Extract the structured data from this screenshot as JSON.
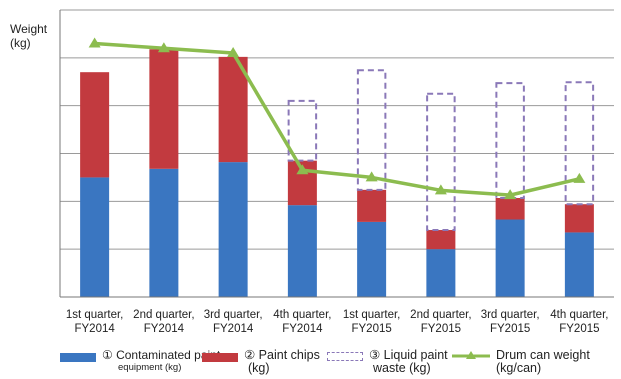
{
  "chart_data": {
    "type": "bar",
    "subtype": "stacked-bar-with-line",
    "ylabel_line1": "Weight",
    "ylabel_line2": "(kg)",
    "categories": [
      [
        "1st quarter,",
        "FY2014"
      ],
      [
        "2nd quarter,",
        "FY2014"
      ],
      [
        "3rd quarter,",
        "FY2014"
      ],
      [
        "4th quarter,",
        "FY2014"
      ],
      [
        "1st quarter,",
        "FY2015"
      ],
      [
        "2nd quarter,",
        "FY2015"
      ],
      [
        "3rd quarter,",
        "FY2015"
      ],
      [
        "4th quarter,",
        "FY2015"
      ]
    ],
    "ylim": [
      0,
      6
    ],
    "gridlines": [
      1,
      2,
      3,
      4,
      5,
      6
    ],
    "grid": true,
    "y_tick_labels_shown": false,
    "series": [
      {
        "name": "① Contaminated paint equipment (kg)",
        "kind": "bar",
        "color": "#3a76c1",
        "values": [
          2.5,
          2.68,
          2.82,
          1.92,
          1.57,
          1.0,
          1.62,
          1.35
        ]
      },
      {
        "name": "② Paint chips (kg)",
        "kind": "bar",
        "color": "#c23a3f",
        "values": [
          2.2,
          2.5,
          2.2,
          0.93,
          0.67,
          0.4,
          0.45,
          0.59
        ]
      },
      {
        "name": "③ Liquid paint waste (kg)",
        "kind": "bar-outline",
        "color": "#8a78b8",
        "values": [
          0,
          0,
          0,
          1.25,
          2.5,
          2.85,
          2.4,
          2.55
        ]
      },
      {
        "name": "Drum can weight (kg/can)",
        "kind": "line",
        "color": "#8cbc4f",
        "values": [
          5.3,
          5.2,
          5.1,
          2.65,
          2.5,
          2.23,
          2.13,
          2.47
        ]
      }
    ],
    "legend_position": "bottom"
  },
  "legend": {
    "item1_line1": "① Contaminated paint",
    "item1_line2": "equipment (kg)",
    "item2_line1": "② Paint chips",
    "item2_line2": "(kg)",
    "item3_line1": "③ Liquid paint",
    "item3_line2": "waste (kg)",
    "item4_line1": "Drum can weight",
    "item4_line2": "(kg/can)"
  }
}
